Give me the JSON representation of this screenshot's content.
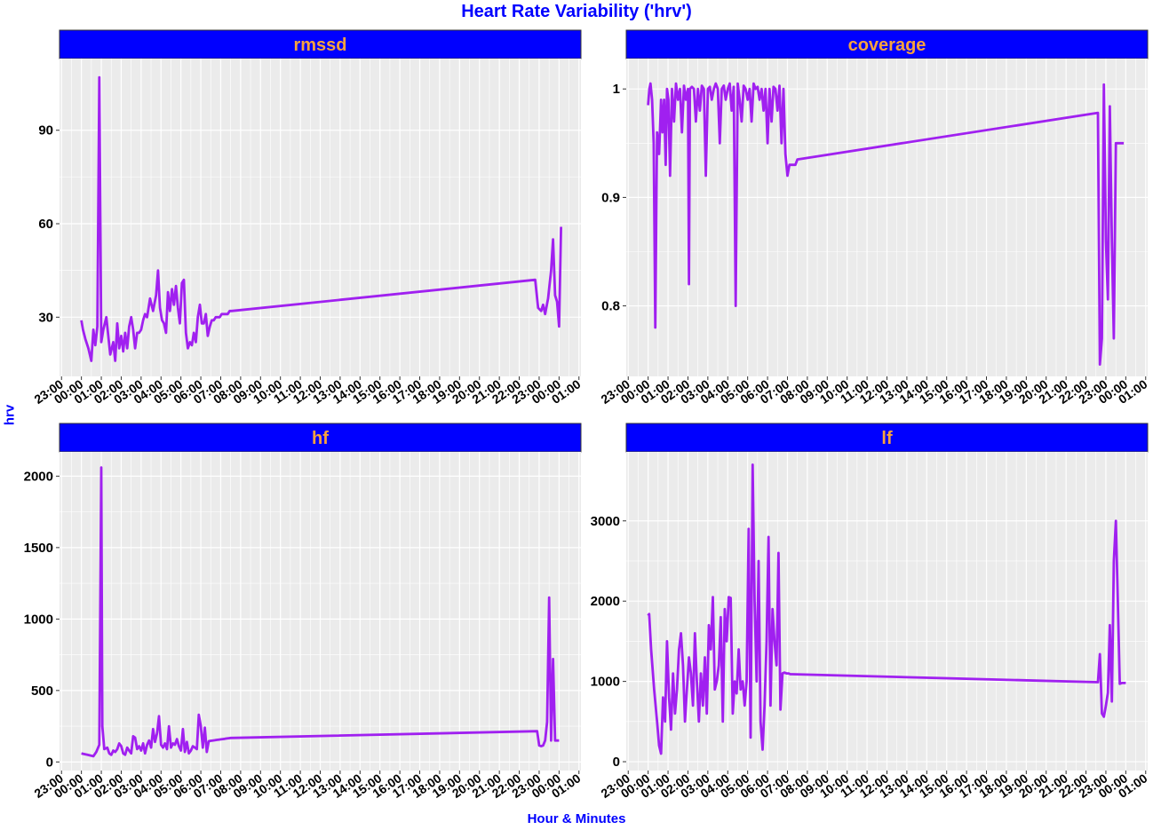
{
  "title": "Heart Rate Variability ('hrv')",
  "xlabel": "Hour & Minutes",
  "ylabel": "hrv",
  "colors": {
    "line": "#a020f0",
    "strip_bg": "#0000ff",
    "strip_text": "#f7a23e",
    "panel_bg": "#ebebeb",
    "grid": "#ffffff",
    "title": "#0000ff"
  },
  "x_ticks": [
    "23:00",
    "00:00",
    "01:00",
    "02:00",
    "03:00",
    "04:00",
    "05:00",
    "06:00",
    "07:00",
    "08:00",
    "09:00",
    "10:00",
    "11:00",
    "12:00",
    "13:00",
    "14:00",
    "15:00",
    "16:00",
    "17:00",
    "18:00",
    "19:00",
    "20:00",
    "21:00",
    "22:00",
    "23:00",
    "00:00",
    "01:00"
  ],
  "chart_data": [
    {
      "type": "line",
      "title": "rmssd",
      "ylim": [
        11,
        113
      ],
      "y_ticks": [
        30,
        60,
        90
      ],
      "x_range_hours": [
        -1.1,
        25.1
      ],
      "series": [
        {
          "x": [
            0.0,
            0.08,
            0.2,
            0.35,
            0.5,
            0.6,
            0.7,
            0.8,
            0.9,
            1.0,
            1.05,
            1.1,
            1.25,
            1.35,
            1.45,
            1.6,
            1.7,
            1.8,
            1.9,
            2.0,
            2.1,
            2.2,
            2.3,
            2.4,
            2.5,
            2.6,
            2.7,
            2.8,
            2.9,
            3.0,
            3.1,
            3.2,
            3.3,
            3.45,
            3.6,
            3.75,
            3.85,
            3.95,
            4.05,
            4.15,
            4.25,
            4.35,
            4.45,
            4.55,
            4.65,
            4.75,
            4.85,
            4.95,
            5.05,
            5.15,
            5.25,
            5.35,
            5.45,
            5.55,
            5.65,
            5.75,
            5.85,
            5.95,
            6.05,
            6.15,
            6.25,
            6.35,
            6.45,
            6.55,
            6.65,
            6.75,
            6.85,
            6.95,
            7.05,
            7.15,
            7.25,
            7.35,
            7.45,
            7.55,
            22.8,
            22.95,
            23.1,
            23.2,
            23.3,
            23.45,
            23.6,
            23.7,
            23.8,
            23.9,
            24.0,
            24.1
          ],
          "y": [
            29,
            26,
            23,
            20,
            16,
            26,
            21,
            27,
            107,
            22,
            24,
            26,
            30,
            24,
            18,
            22,
            16,
            28,
            20,
            24,
            19,
            25,
            20,
            27,
            30,
            26,
            20,
            25,
            25,
            26,
            29,
            31,
            30,
            36,
            32,
            37,
            45,
            33,
            29,
            28,
            25,
            38,
            32,
            39,
            34,
            40,
            33,
            28,
            41,
            42,
            25,
            20,
            22,
            21,
            25,
            22,
            30,
            34,
            28,
            28,
            31,
            24,
            27,
            29,
            29,
            30,
            30,
            30,
            31,
            31,
            31,
            31,
            32,
            32,
            42,
            33,
            32,
            34,
            31,
            36,
            45,
            55,
            37,
            35,
            27,
            59
          ]
        }
      ]
    },
    {
      "type": "line",
      "title": "coverage",
      "ylim": [
        0.735,
        1.028
      ],
      "y_ticks": [
        0.8,
        0.9,
        1.0
      ],
      "x_range_hours": [
        -1.1,
        25.1
      ],
      "series": [
        {
          "x": [
            0.0,
            0.06,
            0.12,
            0.2,
            0.28,
            0.36,
            0.45,
            0.55,
            0.65,
            0.72,
            0.8,
            0.88,
            0.95,
            1.02,
            1.1,
            1.2,
            1.3,
            1.4,
            1.5,
            1.6,
            1.7,
            1.8,
            1.9,
            2.0,
            2.05,
            2.1,
            2.2,
            2.3,
            2.4,
            2.5,
            2.6,
            2.7,
            2.8,
            2.9,
            3.0,
            3.1,
            3.2,
            3.3,
            3.4,
            3.5,
            3.6,
            3.7,
            3.8,
            3.9,
            4.0,
            4.1,
            4.2,
            4.3,
            4.4,
            4.5,
            4.6,
            4.7,
            4.8,
            4.9,
            5.0,
            5.1,
            5.2,
            5.3,
            5.4,
            5.5,
            5.6,
            5.7,
            5.8,
            5.9,
            6.0,
            6.1,
            6.2,
            6.3,
            6.4,
            6.5,
            6.6,
            6.7,
            6.8,
            6.9,
            7.0,
            7.05,
            7.1,
            7.2,
            7.3,
            7.4,
            7.5,
            22.6,
            22.7,
            22.8,
            22.9,
            23.0,
            23.1,
            23.2,
            23.3,
            23.4,
            23.5,
            23.6,
            23.7,
            23.8,
            23.9
          ],
          "y": [
            0.985,
            1.0,
            1.005,
            0.99,
            0.95,
            0.78,
            0.96,
            0.94,
            0.99,
            0.96,
            0.99,
            0.93,
            1.0,
            0.99,
            0.92,
            1.0,
            0.97,
            1.005,
            0.99,
            1.0,
            0.96,
            1.003,
            0.99,
            1.0,
            0.82,
            1.0,
            1.002,
            1.0,
            0.97,
            1.0,
            0.98,
            1.003,
            1.0,
            0.92,
            1.0,
            1.002,
            0.99,
            1.0,
            1.005,
            1.0,
            0.95,
            1.0,
            1.003,
            0.99,
            1.0,
            1.005,
            0.98,
            1.002,
            0.8,
            1.005,
            0.99,
            0.97,
            1.003,
            1.0,
            0.99,
            1.0,
            0.97,
            1.005,
            1.0,
            1.002,
            0.99,
            1.0,
            0.98,
            1.0,
            0.95,
            1.0,
            0.97,
            1.002,
            1.0,
            0.98,
            1.003,
            0.95,
            1.0,
            0.94,
            0.92,
            0.925,
            0.93,
            0.93,
            0.93,
            0.93,
            0.935,
            0.978,
            0.746,
            0.77,
            1.004,
            0.86,
            0.806,
            0.984,
            0.86,
            0.77,
            0.95,
            0.95,
            0.95,
            0.95,
            0.95
          ]
        }
      ]
    },
    {
      "type": "line",
      "title": "hf",
      "ylim": [
        -60,
        2170
      ],
      "y_ticks": [
        0,
        500,
        1000,
        1500,
        2000
      ],
      "x_range_hours": [
        -1.1,
        25.1
      ],
      "series": [
        {
          "x": [
            0.0,
            0.3,
            0.6,
            0.75,
            0.9,
            1.0,
            1.05,
            1.15,
            1.3,
            1.4,
            1.5,
            1.6,
            1.7,
            1.8,
            1.9,
            2.0,
            2.1,
            2.2,
            2.3,
            2.4,
            2.5,
            2.6,
            2.7,
            2.8,
            2.9,
            3.0,
            3.1,
            3.2,
            3.3,
            3.4,
            3.5,
            3.6,
            3.7,
            3.8,
            3.9,
            4.0,
            4.1,
            4.2,
            4.3,
            4.4,
            4.5,
            4.6,
            4.7,
            4.8,
            4.9,
            5.0,
            5.1,
            5.2,
            5.3,
            5.4,
            5.5,
            5.6,
            5.7,
            5.8,
            5.9,
            6.0,
            6.1,
            6.2,
            6.3,
            6.4,
            6.5,
            6.6,
            6.7,
            6.8,
            6.9,
            7.0,
            7.1,
            7.2,
            7.3,
            7.4,
            7.5,
            22.9,
            23.0,
            23.1,
            23.2,
            23.3,
            23.4,
            23.5,
            23.6,
            23.7,
            23.8,
            23.9,
            24.0
          ],
          "y": [
            60,
            50,
            40,
            70,
            120,
            2060,
            250,
            90,
            100,
            60,
            50,
            80,
            70,
            90,
            130,
            110,
            60,
            50,
            100,
            80,
            60,
            180,
            170,
            90,
            110,
            80,
            130,
            60,
            120,
            150,
            100,
            230,
            140,
            200,
            320,
            120,
            100,
            130,
            90,
            250,
            100,
            130,
            120,
            160,
            110,
            80,
            230,
            70,
            140,
            60,
            80,
            110,
            100,
            90,
            330,
            250,
            100,
            240,
            70,
            145,
            148,
            150,
            152,
            154,
            156,
            158,
            160,
            162,
            164,
            166,
            168,
            215,
            115,
            110,
            115,
            150,
            280,
            1150,
            150,
            720,
            150,
            150,
            150
          ]
        }
      ]
    },
    {
      "type": "line",
      "title": "lf",
      "ylim": [
        -110,
        3860
      ],
      "y_ticks": [
        0,
        1000,
        2000,
        3000
      ],
      "x_range_hours": [
        -1.1,
        25.1
      ],
      "series": [
        {
          "x": [
            0.0,
            0.05,
            0.15,
            0.3,
            0.45,
            0.55,
            0.65,
            0.75,
            0.85,
            0.95,
            1.05,
            1.15,
            1.25,
            1.35,
            1.45,
            1.55,
            1.65,
            1.75,
            1.85,
            1.95,
            2.05,
            2.15,
            2.25,
            2.35,
            2.45,
            2.55,
            2.65,
            2.75,
            2.85,
            2.95,
            3.05,
            3.15,
            3.25,
            3.35,
            3.45,
            3.55,
            3.65,
            3.75,
            3.85,
            3.95,
            4.05,
            4.15,
            4.25,
            4.35,
            4.45,
            4.55,
            4.65,
            4.75,
            4.85,
            4.95,
            5.05,
            5.15,
            5.25,
            5.35,
            5.45,
            5.55,
            5.65,
            5.75,
            5.85,
            5.95,
            6.05,
            6.15,
            6.25,
            6.35,
            6.45,
            6.55,
            6.65,
            6.75,
            6.85,
            6.95,
            7.05,
            7.15,
            7.25,
            22.6,
            22.7,
            22.8,
            22.9,
            23.0,
            23.1,
            23.2,
            23.3,
            23.4,
            23.5,
            23.6,
            23.7,
            23.8,
            23.9,
            24.0
          ],
          "y": [
            1820,
            1840,
            1400,
            900,
            500,
            200,
            100,
            800,
            500,
            1500,
            800,
            400,
            1100,
            600,
            900,
            1400,
            1600,
            1200,
            500,
            900,
            1300,
            1100,
            700,
            1600,
            1000,
            500,
            1100,
            700,
            1300,
            600,
            1700,
            1400,
            2050,
            900,
            1000,
            1200,
            1800,
            500,
            1900,
            1500,
            2050,
            2040,
            600,
            1000,
            850,
            1400,
            900,
            1000,
            700,
            1000,
            2900,
            300,
            3700,
            2000,
            1000,
            2500,
            500,
            150,
            700,
            1500,
            2800,
            700,
            1900,
            1500,
            1200,
            2600,
            650,
            1100,
            1110,
            1100,
            1100,
            1090,
            1090,
            990,
            1340,
            600,
            560,
            700,
            860,
            1700,
            750,
            2500,
            3000,
            2000,
            970,
            980,
            980,
            980
          ]
        }
      ]
    }
  ]
}
